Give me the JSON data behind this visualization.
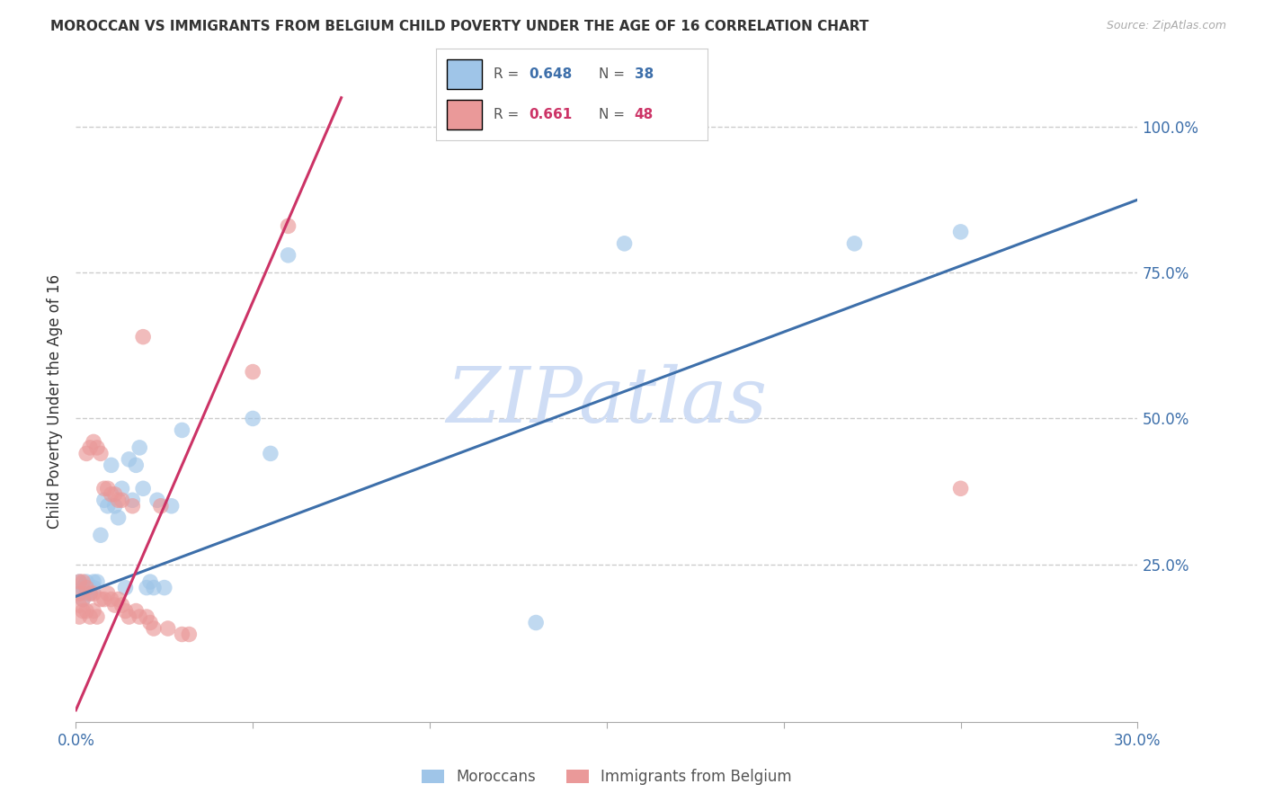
{
  "title": "MOROCCAN VS IMMIGRANTS FROM BELGIUM CHILD POVERTY UNDER THE AGE OF 16 CORRELATION CHART",
  "source": "Source: ZipAtlas.com",
  "ylabel": "Child Poverty Under the Age of 16",
  "xlim": [
    0.0,
    0.3
  ],
  "ylim": [
    -0.02,
    1.08
  ],
  "xticks": [
    0.0,
    0.05,
    0.1,
    0.15,
    0.2,
    0.25,
    0.3
  ],
  "yticks": [
    0.0,
    0.25,
    0.5,
    0.75,
    1.0
  ],
  "ytick_labels": [
    "",
    "25.0%",
    "50.0%",
    "75.0%",
    "100.0%"
  ],
  "xtick_labels": [
    "0.0%",
    "",
    "",
    "",
    "",
    "",
    "30.0%"
  ],
  "blue_color": "#9fc5e8",
  "pink_color": "#ea9999",
  "blue_line_color": "#3d6faa",
  "pink_line_color": "#cc3366",
  "r_blue": 0.648,
  "n_blue": 38,
  "r_pink": 0.661,
  "n_pink": 48,
  "legend_label_blue": "Moroccans",
  "legend_label_pink": "Immigrants from Belgium",
  "watermark": "ZIPatlas",
  "watermark_color": "#cfddf5",
  "blue_line_x": [
    0.0,
    0.3
  ],
  "blue_line_y": [
    0.195,
    0.875
  ],
  "pink_line_x": [
    0.0,
    0.075
  ],
  "pink_line_y": [
    0.0,
    1.05
  ],
  "blue_scatter_x": [
    0.001,
    0.001,
    0.002,
    0.002,
    0.003,
    0.003,
    0.004,
    0.004,
    0.005,
    0.005,
    0.006,
    0.007,
    0.008,
    0.009,
    0.01,
    0.011,
    0.012,
    0.013,
    0.014,
    0.015,
    0.016,
    0.017,
    0.018,
    0.019,
    0.02,
    0.021,
    0.022,
    0.023,
    0.025,
    0.027,
    0.05,
    0.055,
    0.13,
    0.22,
    0.25,
    0.155,
    0.06,
    0.03
  ],
  "blue_scatter_y": [
    0.2,
    0.22,
    0.19,
    0.21,
    0.2,
    0.22,
    0.21,
    0.2,
    0.21,
    0.22,
    0.22,
    0.3,
    0.36,
    0.35,
    0.42,
    0.35,
    0.33,
    0.38,
    0.21,
    0.43,
    0.36,
    0.42,
    0.45,
    0.38,
    0.21,
    0.22,
    0.21,
    0.36,
    0.21,
    0.35,
    0.5,
    0.44,
    0.15,
    0.8,
    0.82,
    0.8,
    0.78,
    0.48
  ],
  "pink_scatter_x": [
    0.001,
    0.001,
    0.001,
    0.001,
    0.002,
    0.002,
    0.002,
    0.003,
    0.003,
    0.003,
    0.004,
    0.004,
    0.004,
    0.005,
    0.005,
    0.005,
    0.006,
    0.006,
    0.007,
    0.007,
    0.008,
    0.008,
    0.009,
    0.009,
    0.01,
    0.01,
    0.011,
    0.011,
    0.012,
    0.012,
    0.013,
    0.013,
    0.014,
    0.015,
    0.016,
    0.017,
    0.018,
    0.019,
    0.02,
    0.021,
    0.022,
    0.024,
    0.026,
    0.03,
    0.032,
    0.05,
    0.06,
    0.25
  ],
  "pink_scatter_y": [
    0.16,
    0.18,
    0.2,
    0.22,
    0.17,
    0.19,
    0.22,
    0.17,
    0.21,
    0.44,
    0.16,
    0.2,
    0.45,
    0.17,
    0.2,
    0.46,
    0.16,
    0.45,
    0.19,
    0.44,
    0.19,
    0.38,
    0.2,
    0.38,
    0.19,
    0.37,
    0.18,
    0.37,
    0.19,
    0.36,
    0.18,
    0.36,
    0.17,
    0.16,
    0.35,
    0.17,
    0.16,
    0.64,
    0.16,
    0.15,
    0.14,
    0.35,
    0.14,
    0.13,
    0.13,
    0.58,
    0.83,
    0.38
  ],
  "background_color": "#ffffff",
  "grid_color": "#cccccc"
}
